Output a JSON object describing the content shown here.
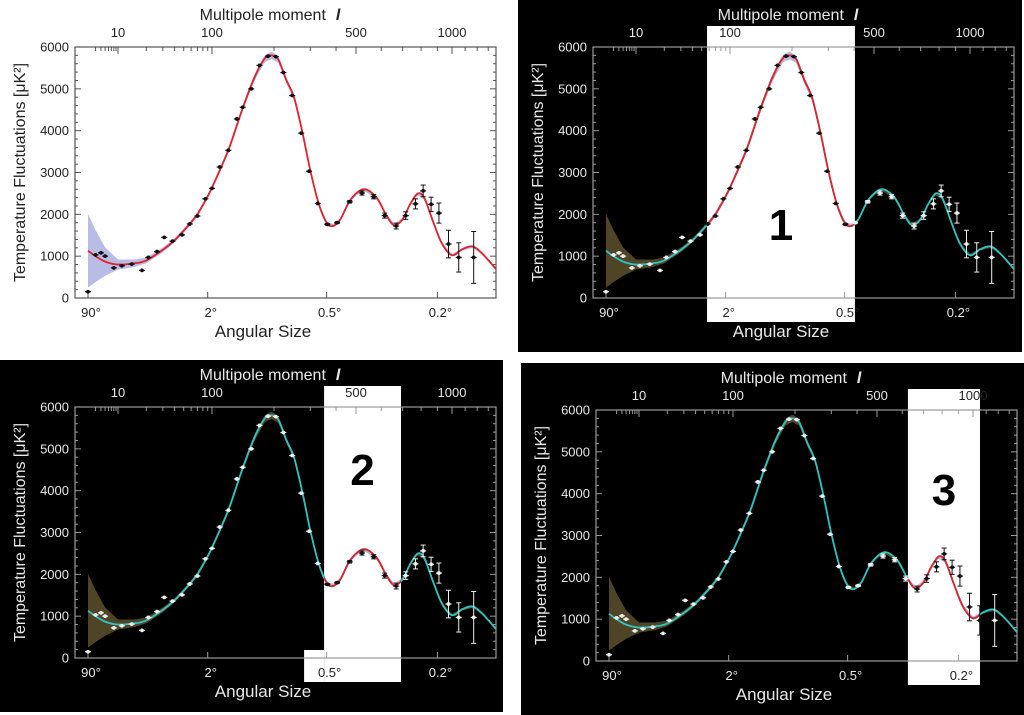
{
  "chart_data": {
    "type": "line",
    "top_axis_label": "Multipole moment",
    "top_axis_symbol": "l",
    "xlabel": "Angular Size",
    "ylabel": "Temperature Fluctuations [μK²]",
    "ylim": [
      0,
      6000
    ],
    "xlim_multipole": [
      2,
      1375
    ],
    "y_ticks": [
      "0",
      "1000",
      "2000",
      "3000",
      "4000",
      "5000",
      "6000"
    ],
    "top_ticks": [
      {
        "l": 10,
        "label": "10"
      },
      {
        "l": 100,
        "label": "100"
      },
      {
        "l": 500,
        "label": "500"
      },
      {
        "l": 1000,
        "label": "1000"
      }
    ],
    "bottom_ticks": [
      {
        "l": 2,
        "label": "90°"
      },
      {
        "l": 90,
        "label": "2°"
      },
      {
        "l": 360,
        "label": "0.5°"
      },
      {
        "l": 900,
        "label": "0.2°"
      }
    ],
    "grid": false,
    "colors": {
      "theory_light": "#e0222c",
      "theory_dark": "#2ec4c4",
      "highlight_curve": "#e0222c",
      "band_light": "#b9bde6",
      "band_dark": "#4f4526",
      "points_light": "#111111",
      "points_dark": "#eeeeee"
    },
    "theory": [
      [
        2,
        1130
      ],
      [
        3,
        1000
      ],
      [
        5,
        870
      ],
      [
        10,
        800
      ],
      [
        15,
        830
      ],
      [
        20,
        900
      ],
      [
        30,
        1150
      ],
      [
        40,
        1380
      ],
      [
        58,
        1770
      ],
      [
        70,
        2000
      ],
      [
        85,
        2330
      ],
      [
        100,
        2640
      ],
      [
        120,
        3530
      ],
      [
        140,
        4500
      ],
      [
        160,
        5250
      ],
      [
        180,
        5720
      ],
      [
        195,
        5800
      ],
      [
        210,
        5700
      ],
      [
        230,
        5200
      ],
      [
        250,
        4800
      ],
      [
        275,
        3950
      ],
      [
        300,
        3050
      ],
      [
        330,
        2250
      ],
      [
        360,
        1800
      ],
      [
        387,
        1720
      ],
      [
        420,
        1880
      ],
      [
        470,
        2350
      ],
      [
        529,
        2600
      ],
      [
        580,
        2400
      ],
      [
        620,
        2000
      ],
      [
        658,
        1740
      ],
      [
        700,
        1880
      ],
      [
        740,
        2250
      ],
      [
        782,
        2500
      ],
      [
        820,
        2380
      ],
      [
        870,
        1850
      ],
      [
        930,
        1300
      ],
      [
        1000,
        1020
      ],
      [
        1080,
        1170
      ],
      [
        1164,
        1230
      ],
      [
        1250,
        1050
      ],
      [
        1375,
        690
      ]
    ],
    "band_halfwidth": [
      [
        2,
        880
      ],
      [
        3,
        620
      ],
      [
        5,
        340
      ],
      [
        10,
        120
      ],
      [
        20,
        70
      ],
      [
        40,
        50
      ],
      [
        100,
        50
      ],
      [
        195,
        90
      ],
      [
        300,
        40
      ],
      [
        1375,
        30
      ]
    ],
    "points": [
      [
        2,
        150,
        0
      ],
      [
        3,
        1030,
        0
      ],
      [
        4,
        1080,
        0
      ],
      [
        5,
        1000,
        0
      ],
      [
        8,
        720,
        0
      ],
      [
        11,
        770,
        0
      ],
      [
        14,
        810,
        0
      ],
      [
        18,
        660,
        0
      ],
      [
        21,
        970,
        0
      ],
      [
        26,
        1110,
        0
      ],
      [
        31,
        1450,
        0
      ],
      [
        38,
        1360,
        0
      ],
      [
        48,
        1510,
        0
      ],
      [
        58,
        1770,
        0
      ],
      [
        70,
        1960,
        0
      ],
      [
        85,
        2370,
        0
      ],
      [
        100,
        2620,
        0
      ],
      [
        109,
        3130,
        0
      ],
      [
        120,
        3530,
        0
      ],
      [
        132,
        4280,
        0
      ],
      [
        141,
        4560,
        0
      ],
      [
        155,
        5000,
        0
      ],
      [
        170,
        5560,
        0
      ],
      [
        187,
        5780,
        0
      ],
      [
        204,
        5770,
        0
      ],
      [
        222,
        5390,
        0
      ],
      [
        245,
        4840,
        0
      ],
      [
        271,
        3940,
        0
      ],
      [
        296,
        3030,
        0
      ],
      [
        326,
        2260,
        0
      ],
      [
        363,
        1760,
        20
      ],
      [
        405,
        1800,
        20
      ],
      [
        466,
        2300,
        30
      ],
      [
        522,
        2510,
        50
      ],
      [
        568,
        2420,
        50
      ],
      [
        615,
        1970,
        60
      ],
      [
        668,
        1720,
        70
      ],
      [
        716,
        1970,
        90
      ],
      [
        768,
        2250,
        120
      ],
      [
        812,
        2560,
        140
      ],
      [
        860,
        2240,
        170
      ],
      [
        910,
        2030,
        240
      ],
      [
        975,
        1290,
        330
      ],
      [
        1050,
        970,
        350
      ],
      [
        1170,
        970,
        620
      ]
    ],
    "panels": [
      {
        "theme": "light",
        "highlight": null,
        "label": ""
      },
      {
        "theme": "dark",
        "highlight": [
          57,
          404
        ],
        "label": "1"
      },
      {
        "theme": "dark",
        "highlight": [
          350,
          692
        ],
        "label": "2"
      },
      {
        "theme": "dark",
        "highlight": [
          625,
          1052
        ],
        "label": "3"
      }
    ]
  }
}
